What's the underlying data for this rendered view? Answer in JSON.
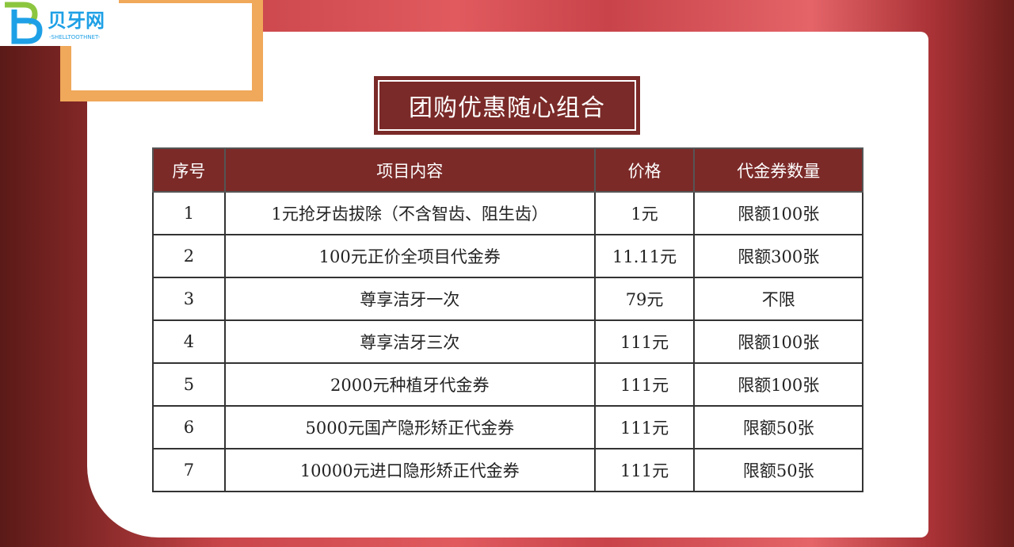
{
  "logo": {
    "name": "贝牙网",
    "tagline": "-SHELLTOOTHNET-",
    "colors": {
      "green": "#8cc63f",
      "blue": "#1ea0e6"
    }
  },
  "title": "团购优惠随心组合",
  "table": {
    "headers": [
      "序号",
      "项目内容",
      "价格",
      "代金券数量"
    ],
    "rows": [
      [
        "1",
        "1元抢牙齿拔除（不含智齿、阻生齿）",
        "1元",
        "限额100张"
      ],
      [
        "2",
        "100元正价全项目代金券",
        "11.11元",
        "限额300张"
      ],
      [
        "3",
        "尊享洁牙一次",
        "79元",
        "不限"
      ],
      [
        "4",
        "尊享洁牙三次",
        "111元",
        "限额100张"
      ],
      [
        "5",
        "2000元种植牙代金券",
        "111元",
        "限额100张"
      ],
      [
        "6",
        "5000元国产隐形矫正代金券",
        "111元",
        "限额50张"
      ],
      [
        "7",
        "10000元进口隐形矫正代金券",
        "111元",
        "限额50张"
      ]
    ]
  },
  "colors": {
    "header_bg": "#7b2a28",
    "frame": "#f0a85a"
  }
}
